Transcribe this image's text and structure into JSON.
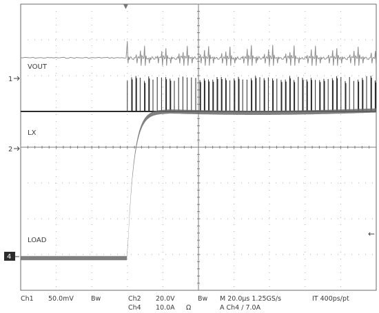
{
  "chart_data": {
    "type": "line",
    "title": "",
    "xlabel": "",
    "ylabel": "",
    "grid": true,
    "x_divisions": 10,
    "y_divisions": 8,
    "time_per_div_us": 20,
    "trigger_position_div": 3,
    "channels": [
      {
        "marker": "1",
        "name": "VOUT",
        "baseline_div": 2.5,
        "behavior": "flat before trigger, periodic ringing spikes after trigger",
        "color": "#8c8c8c"
      },
      {
        "marker": "2",
        "name": "LX",
        "baseline_div": 1.0,
        "behavior": "flat before trigger, switching pulses after trigger",
        "color": "#2a2a2a"
      },
      {
        "marker": "4",
        "name": "LOAD",
        "baseline_div": -3.1,
        "step_to_div": 1.0,
        "behavior": "step increase at trigger, then settles",
        "color": "#6a6a6a"
      }
    ]
  },
  "status": {
    "ch1_label": "Ch1",
    "ch1_scale": "50.0mV",
    "ch1_bw": "Bw",
    "ch2_label": "Ch2",
    "ch2_scale": "20.0V",
    "ch2_bw": "Bw",
    "ch4_label": "Ch4",
    "ch4_scale": "10.0A",
    "ch4_unit": "Ω",
    "timebase": "M 20.0µs 1.25GS/s",
    "interp": "IT 400ps/pt",
    "trigger": "A  Ch4  ∕  7.0A"
  },
  "markers": {
    "trigger_top": "▼",
    "level_right": "←"
  }
}
